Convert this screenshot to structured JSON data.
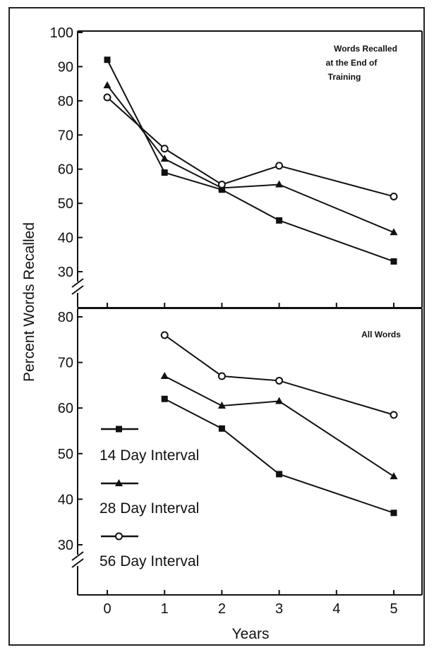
{
  "chart_data": [
    {
      "type": "line",
      "annotation": [
        "Words Recalled",
        "at the End of",
        "Training"
      ],
      "ylabel": "Percent Words Recalled",
      "ylim": [
        30,
        100
      ],
      "yticks": [
        30,
        40,
        50,
        60,
        70,
        80,
        90,
        100
      ],
      "xlim": [
        0,
        5
      ],
      "axis_break": "y-axis break below 30",
      "series": [
        {
          "name": "14 Day Interval",
          "marker": "filled-square",
          "x": [
            0,
            1,
            2,
            3,
            5
          ],
          "values": [
            92,
            59,
            54,
            45,
            33
          ]
        },
        {
          "name": "28 Day Interval",
          "marker": "filled-triangle",
          "x": [
            0,
            1,
            2,
            3,
            5
          ],
          "values": [
            84.5,
            63,
            54.5,
            55.5,
            41.5
          ]
        },
        {
          "name": "56 Day Interval",
          "marker": "open-circle",
          "x": [
            0,
            1,
            2,
            3,
            5
          ],
          "values": [
            81,
            66,
            55.5,
            61,
            52
          ]
        }
      ]
    },
    {
      "type": "line",
      "annotation": [
        "All Words"
      ],
      "ylim": [
        30,
        80
      ],
      "yticks": [
        30,
        40,
        50,
        60,
        70,
        80
      ],
      "xlabel": "Years",
      "xticks": [
        0,
        1,
        2,
        3,
        4,
        5
      ],
      "xlim": [
        0,
        5
      ],
      "axis_break": "y-axis break below 30",
      "legend": {
        "placement": "lower-left",
        "entries": [
          "14 Day Interval",
          "28 Day Interval",
          "56 Day Interval"
        ]
      },
      "series": [
        {
          "name": "14 Day Interval",
          "marker": "filled-square",
          "x": [
            1,
            2,
            3,
            5
          ],
          "values": [
            62,
            55.5,
            45.5,
            37
          ]
        },
        {
          "name": "28 Day Interval",
          "marker": "filled-triangle",
          "x": [
            1,
            2,
            3,
            5
          ],
          "values": [
            67,
            60.5,
            61.5,
            45
          ]
        },
        {
          "name": "56 Day Interval",
          "marker": "open-circle",
          "x": [
            1,
            2,
            3,
            5
          ],
          "values": [
            76,
            67,
            66,
            58.5
          ]
        }
      ]
    }
  ]
}
